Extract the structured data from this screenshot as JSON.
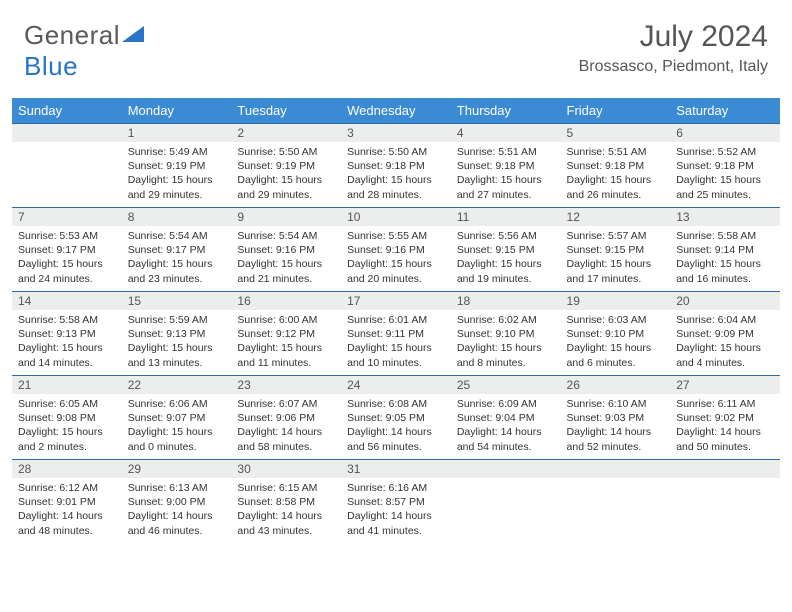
{
  "logo": {
    "part1": "General",
    "part2": "Blue"
  },
  "title": "July 2024",
  "location": "Brossasco, Piedmont, Italy",
  "colors": {
    "header_bg": "#3b8bd4",
    "header_text": "#ffffff",
    "daynum_bg": "#eceded",
    "row_border": "#2f6aa8",
    "logo_gray": "#5a5a5a",
    "logo_blue": "#2874c7"
  },
  "typography": {
    "title_fontsize": 30,
    "location_fontsize": 16,
    "dayhead_fontsize": 13,
    "body_fontsize": 10.5,
    "logo_fontsize": 26
  },
  "day_names": [
    "Sunday",
    "Monday",
    "Tuesday",
    "Wednesday",
    "Thursday",
    "Friday",
    "Saturday"
  ],
  "weeks": [
    [
      {
        "blank": true
      },
      {
        "n": "1",
        "sunrise": "Sunrise: 5:49 AM",
        "sunset": "Sunset: 9:19 PM",
        "daylight": "Daylight: 15 hours and 29 minutes."
      },
      {
        "n": "2",
        "sunrise": "Sunrise: 5:50 AM",
        "sunset": "Sunset: 9:19 PM",
        "daylight": "Daylight: 15 hours and 29 minutes."
      },
      {
        "n": "3",
        "sunrise": "Sunrise: 5:50 AM",
        "sunset": "Sunset: 9:18 PM",
        "daylight": "Daylight: 15 hours and 28 minutes."
      },
      {
        "n": "4",
        "sunrise": "Sunrise: 5:51 AM",
        "sunset": "Sunset: 9:18 PM",
        "daylight": "Daylight: 15 hours and 27 minutes."
      },
      {
        "n": "5",
        "sunrise": "Sunrise: 5:51 AM",
        "sunset": "Sunset: 9:18 PM",
        "daylight": "Daylight: 15 hours and 26 minutes."
      },
      {
        "n": "6",
        "sunrise": "Sunrise: 5:52 AM",
        "sunset": "Sunset: 9:18 PM",
        "daylight": "Daylight: 15 hours and 25 minutes."
      }
    ],
    [
      {
        "n": "7",
        "sunrise": "Sunrise: 5:53 AM",
        "sunset": "Sunset: 9:17 PM",
        "daylight": "Daylight: 15 hours and 24 minutes."
      },
      {
        "n": "8",
        "sunrise": "Sunrise: 5:54 AM",
        "sunset": "Sunset: 9:17 PM",
        "daylight": "Daylight: 15 hours and 23 minutes."
      },
      {
        "n": "9",
        "sunrise": "Sunrise: 5:54 AM",
        "sunset": "Sunset: 9:16 PM",
        "daylight": "Daylight: 15 hours and 21 minutes."
      },
      {
        "n": "10",
        "sunrise": "Sunrise: 5:55 AM",
        "sunset": "Sunset: 9:16 PM",
        "daylight": "Daylight: 15 hours and 20 minutes."
      },
      {
        "n": "11",
        "sunrise": "Sunrise: 5:56 AM",
        "sunset": "Sunset: 9:15 PM",
        "daylight": "Daylight: 15 hours and 19 minutes."
      },
      {
        "n": "12",
        "sunrise": "Sunrise: 5:57 AM",
        "sunset": "Sunset: 9:15 PM",
        "daylight": "Daylight: 15 hours and 17 minutes."
      },
      {
        "n": "13",
        "sunrise": "Sunrise: 5:58 AM",
        "sunset": "Sunset: 9:14 PM",
        "daylight": "Daylight: 15 hours and 16 minutes."
      }
    ],
    [
      {
        "n": "14",
        "sunrise": "Sunrise: 5:58 AM",
        "sunset": "Sunset: 9:13 PM",
        "daylight": "Daylight: 15 hours and 14 minutes."
      },
      {
        "n": "15",
        "sunrise": "Sunrise: 5:59 AM",
        "sunset": "Sunset: 9:13 PM",
        "daylight": "Daylight: 15 hours and 13 minutes."
      },
      {
        "n": "16",
        "sunrise": "Sunrise: 6:00 AM",
        "sunset": "Sunset: 9:12 PM",
        "daylight": "Daylight: 15 hours and 11 minutes."
      },
      {
        "n": "17",
        "sunrise": "Sunrise: 6:01 AM",
        "sunset": "Sunset: 9:11 PM",
        "daylight": "Daylight: 15 hours and 10 minutes."
      },
      {
        "n": "18",
        "sunrise": "Sunrise: 6:02 AM",
        "sunset": "Sunset: 9:10 PM",
        "daylight": "Daylight: 15 hours and 8 minutes."
      },
      {
        "n": "19",
        "sunrise": "Sunrise: 6:03 AM",
        "sunset": "Sunset: 9:10 PM",
        "daylight": "Daylight: 15 hours and 6 minutes."
      },
      {
        "n": "20",
        "sunrise": "Sunrise: 6:04 AM",
        "sunset": "Sunset: 9:09 PM",
        "daylight": "Daylight: 15 hours and 4 minutes."
      }
    ],
    [
      {
        "n": "21",
        "sunrise": "Sunrise: 6:05 AM",
        "sunset": "Sunset: 9:08 PM",
        "daylight": "Daylight: 15 hours and 2 minutes."
      },
      {
        "n": "22",
        "sunrise": "Sunrise: 6:06 AM",
        "sunset": "Sunset: 9:07 PM",
        "daylight": "Daylight: 15 hours and 0 minutes."
      },
      {
        "n": "23",
        "sunrise": "Sunrise: 6:07 AM",
        "sunset": "Sunset: 9:06 PM",
        "daylight": "Daylight: 14 hours and 58 minutes."
      },
      {
        "n": "24",
        "sunrise": "Sunrise: 6:08 AM",
        "sunset": "Sunset: 9:05 PM",
        "daylight": "Daylight: 14 hours and 56 minutes."
      },
      {
        "n": "25",
        "sunrise": "Sunrise: 6:09 AM",
        "sunset": "Sunset: 9:04 PM",
        "daylight": "Daylight: 14 hours and 54 minutes."
      },
      {
        "n": "26",
        "sunrise": "Sunrise: 6:10 AM",
        "sunset": "Sunset: 9:03 PM",
        "daylight": "Daylight: 14 hours and 52 minutes."
      },
      {
        "n": "27",
        "sunrise": "Sunrise: 6:11 AM",
        "sunset": "Sunset: 9:02 PM",
        "daylight": "Daylight: 14 hours and 50 minutes."
      }
    ],
    [
      {
        "n": "28",
        "sunrise": "Sunrise: 6:12 AM",
        "sunset": "Sunset: 9:01 PM",
        "daylight": "Daylight: 14 hours and 48 minutes."
      },
      {
        "n": "29",
        "sunrise": "Sunrise: 6:13 AM",
        "sunset": "Sunset: 9:00 PM",
        "daylight": "Daylight: 14 hours and 46 minutes."
      },
      {
        "n": "30",
        "sunrise": "Sunrise: 6:15 AM",
        "sunset": "Sunset: 8:58 PM",
        "daylight": "Daylight: 14 hours and 43 minutes."
      },
      {
        "n": "31",
        "sunrise": "Sunrise: 6:16 AM",
        "sunset": "Sunset: 8:57 PM",
        "daylight": "Daylight: 14 hours and 41 minutes."
      },
      {
        "blank": true
      },
      {
        "blank": true
      },
      {
        "blank": true
      }
    ]
  ]
}
